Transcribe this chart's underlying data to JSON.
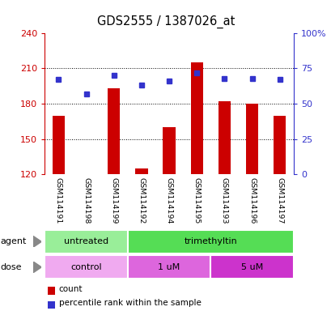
{
  "title": "GDS2555 / 1387026_at",
  "samples": [
    "GSM114191",
    "GSM114198",
    "GSM114199",
    "GSM114192",
    "GSM114194",
    "GSM114195",
    "GSM114193",
    "GSM114196",
    "GSM114197"
  ],
  "counts": [
    170,
    120,
    193,
    125,
    160,
    215,
    182,
    180,
    170
  ],
  "percentiles": [
    67,
    57,
    70,
    63,
    66,
    72,
    68,
    68,
    67
  ],
  "ylim_left": [
    120,
    240
  ],
  "ylim_right": [
    0,
    100
  ],
  "yticks_left": [
    120,
    150,
    180,
    210,
    240
  ],
  "yticks_right": [
    0,
    25,
    50,
    75,
    100
  ],
  "bar_color": "#cc0000",
  "dot_color": "#3333cc",
  "agent_groups": [
    {
      "label": "untreated",
      "span": [
        0,
        3
      ],
      "color": "#99ee99"
    },
    {
      "label": "trimethyltin",
      "span": [
        3,
        9
      ],
      "color": "#55dd55"
    }
  ],
  "dose_groups": [
    {
      "label": "control",
      "span": [
        0,
        3
      ],
      "color": "#f0aaf0"
    },
    {
      "label": "1 uM",
      "span": [
        3,
        6
      ],
      "color": "#dd66dd"
    },
    {
      "label": "5 uM",
      "span": [
        6,
        9
      ],
      "color": "#cc33cc"
    }
  ],
  "legend_count_label": "count",
  "legend_pct_label": "percentile rank within the sample",
  "agent_label": "agent",
  "dose_label": "dose",
  "bg_color": "#ffffff",
  "label_area_color": "#cccccc",
  "right_axis_color": "#3333cc",
  "left_axis_color": "#cc0000",
  "grid_yticks": [
    150,
    180,
    210
  ]
}
